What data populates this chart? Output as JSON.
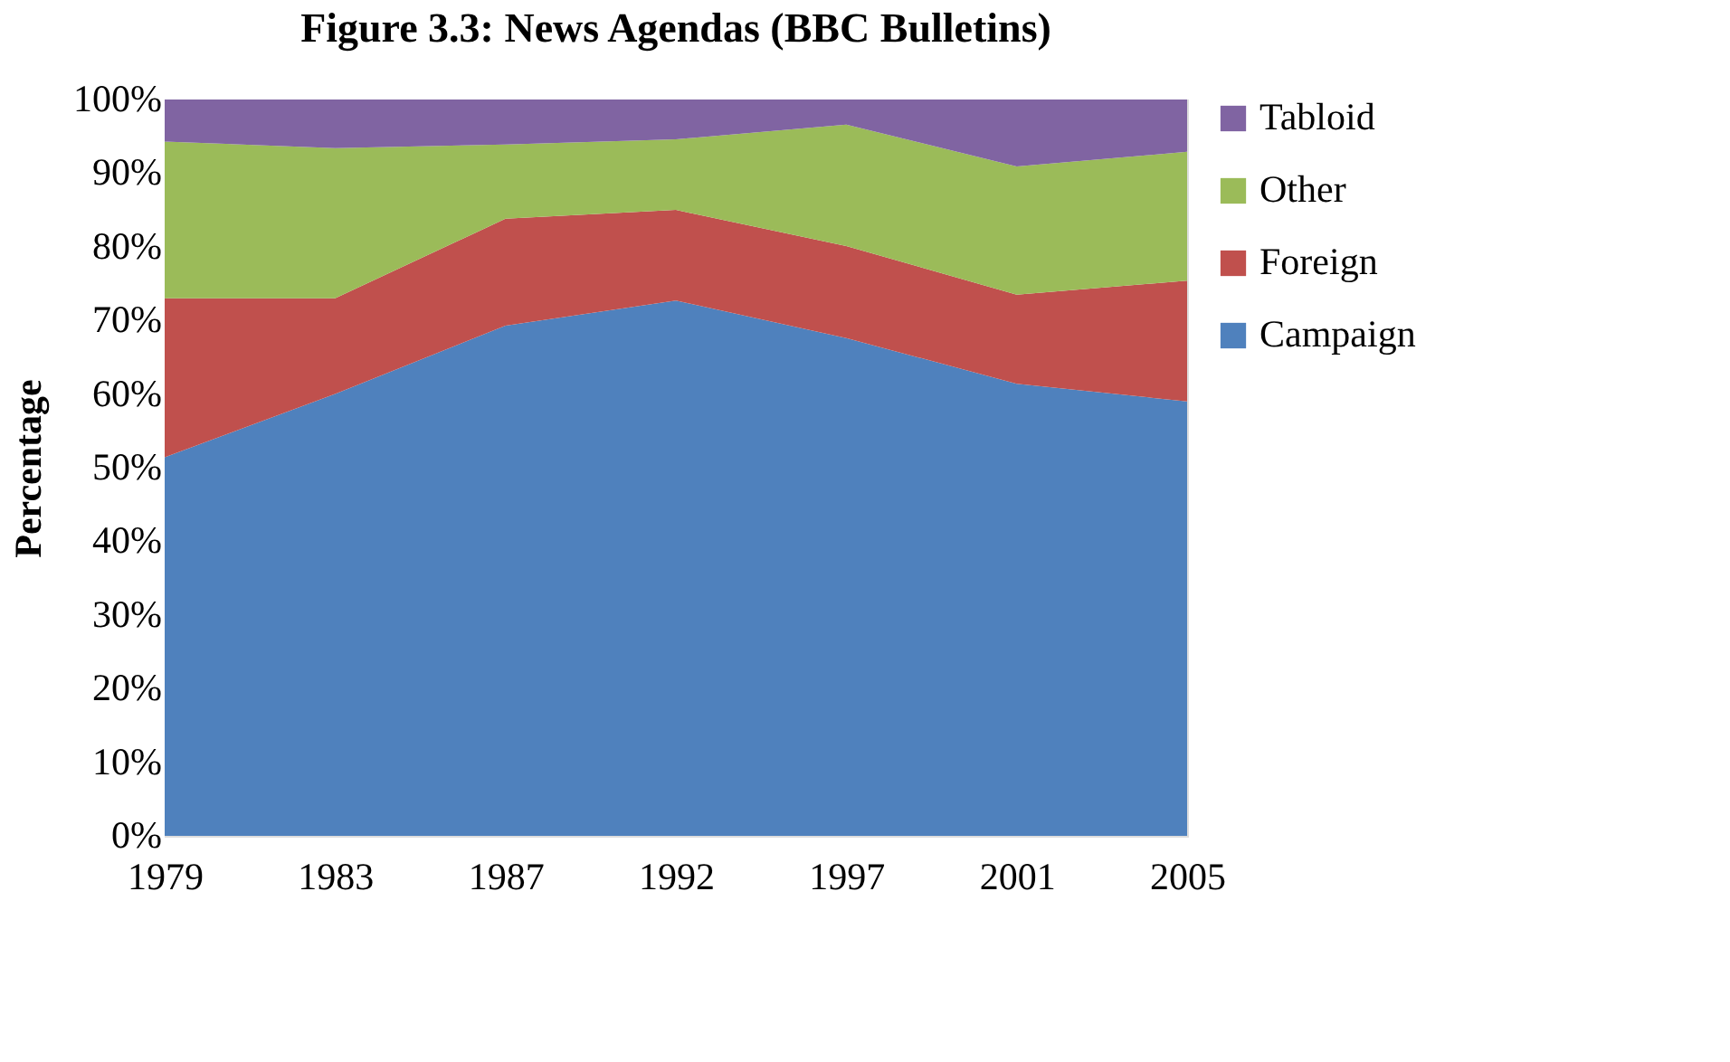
{
  "chart_data": {
    "type": "area",
    "title": "Figure 3.3: News Agendas (BBC Bulletins)",
    "ylabel": "Percentage",
    "categories": [
      "1979",
      "1983",
      "1987",
      "1992",
      "1997",
      "2001",
      "2005"
    ],
    "stacked": true,
    "series": [
      {
        "name": "Campaign",
        "color": "#4f81bd",
        "values": [
          51.4,
          60,
          69.3,
          72.7,
          67.6,
          61.4,
          59
        ]
      },
      {
        "name": "Foreign",
        "color": "#c0504d",
        "values": [
          21.6,
          13,
          14.5,
          12.3,
          12.5,
          12.1,
          16.4
        ]
      },
      {
        "name": "Other",
        "color": "#9bbb59",
        "values": [
          21.3,
          20.4,
          10.1,
          9.6,
          16.5,
          17.4,
          17.5
        ]
      },
      {
        "name": "Tabloid",
        "color": "#8064a2",
        "values": [
          5.7,
          6.6,
          6.1,
          5.4,
          3.4,
          9.1,
          7.1
        ]
      }
    ],
    "ylim": [
      0,
      100
    ],
    "yticks": [
      {
        "value": 0,
        "label": "0%"
      },
      {
        "value": 10,
        "label": "10%"
      },
      {
        "value": 20,
        "label": "20%"
      },
      {
        "value": 30,
        "label": "30%"
      },
      {
        "value": 40,
        "label": "40%"
      },
      {
        "value": 50,
        "label": "50%"
      },
      {
        "value": 60,
        "label": "60%"
      },
      {
        "value": 70,
        "label": "70%"
      },
      {
        "value": 80,
        "label": "80%"
      },
      {
        "value": 90,
        "label": "90%"
      },
      {
        "value": 100,
        "label": "100%"
      }
    ],
    "grid": false,
    "legend": "right"
  }
}
